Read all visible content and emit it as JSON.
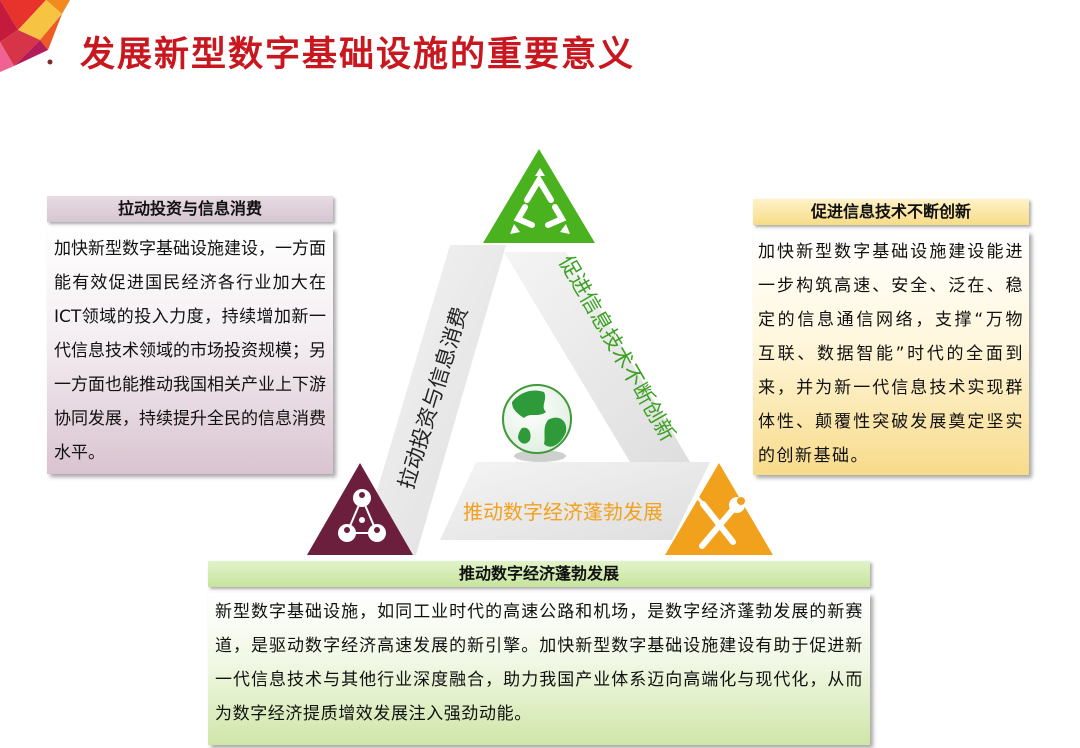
{
  "title": "发展新型数字基础设施的重要意义",
  "colors": {
    "title_red": "#c8171e",
    "green": "#49b21e",
    "orange": "#f2a11d",
    "maroon": "#6b1f3d"
  },
  "icons": {
    "top": "recycle-icon",
    "left": "people-network-icon",
    "right": "wrench-screwdriver-icon",
    "center": "globe-icon"
  },
  "panels": {
    "left": {
      "header": "拉动投资与信息消费",
      "body": "加快新型数字基础设施建设，一方面能有效促进国民经济各行业加大在ICT领域的投入力度，持续增加新一代信息技术领域的市场投资规模；另一方面也能推动我国相关产业上下游协同发展，持续提升全民的信息消费水平。"
    },
    "right": {
      "header": "促进信息技术不断创新",
      "body": "加快新型数字基础设施建设能进一步构筑高速、安全、泛在、稳定的信息通信网络，支撑“万物互联、数据智能”时代的全面到来，并为新一代信息技术实现群体性、颠覆性突破发展奠定坚实的创新基础。"
    },
    "bottom": {
      "header": "推动数字经济蓬勃发展",
      "body": "新型数字基础设施，如同工业时代的高速公路和机场，是数字经济蓬勃发展的新赛道，是驱动数字经济高速发展的新引擎。加快新型数字基础设施建设有助于促进新一代信息技术与其他行业深度融合，助力我国产业体系迈向高端化与现代化，从而为数字经济提质增效发展注入强劲动能。"
    }
  },
  "triangle_labels": {
    "left": "拉动投资与信息消费",
    "right": "促进信息技术不断创新",
    "bottom": "推动数字经济蓬勃发展"
  }
}
